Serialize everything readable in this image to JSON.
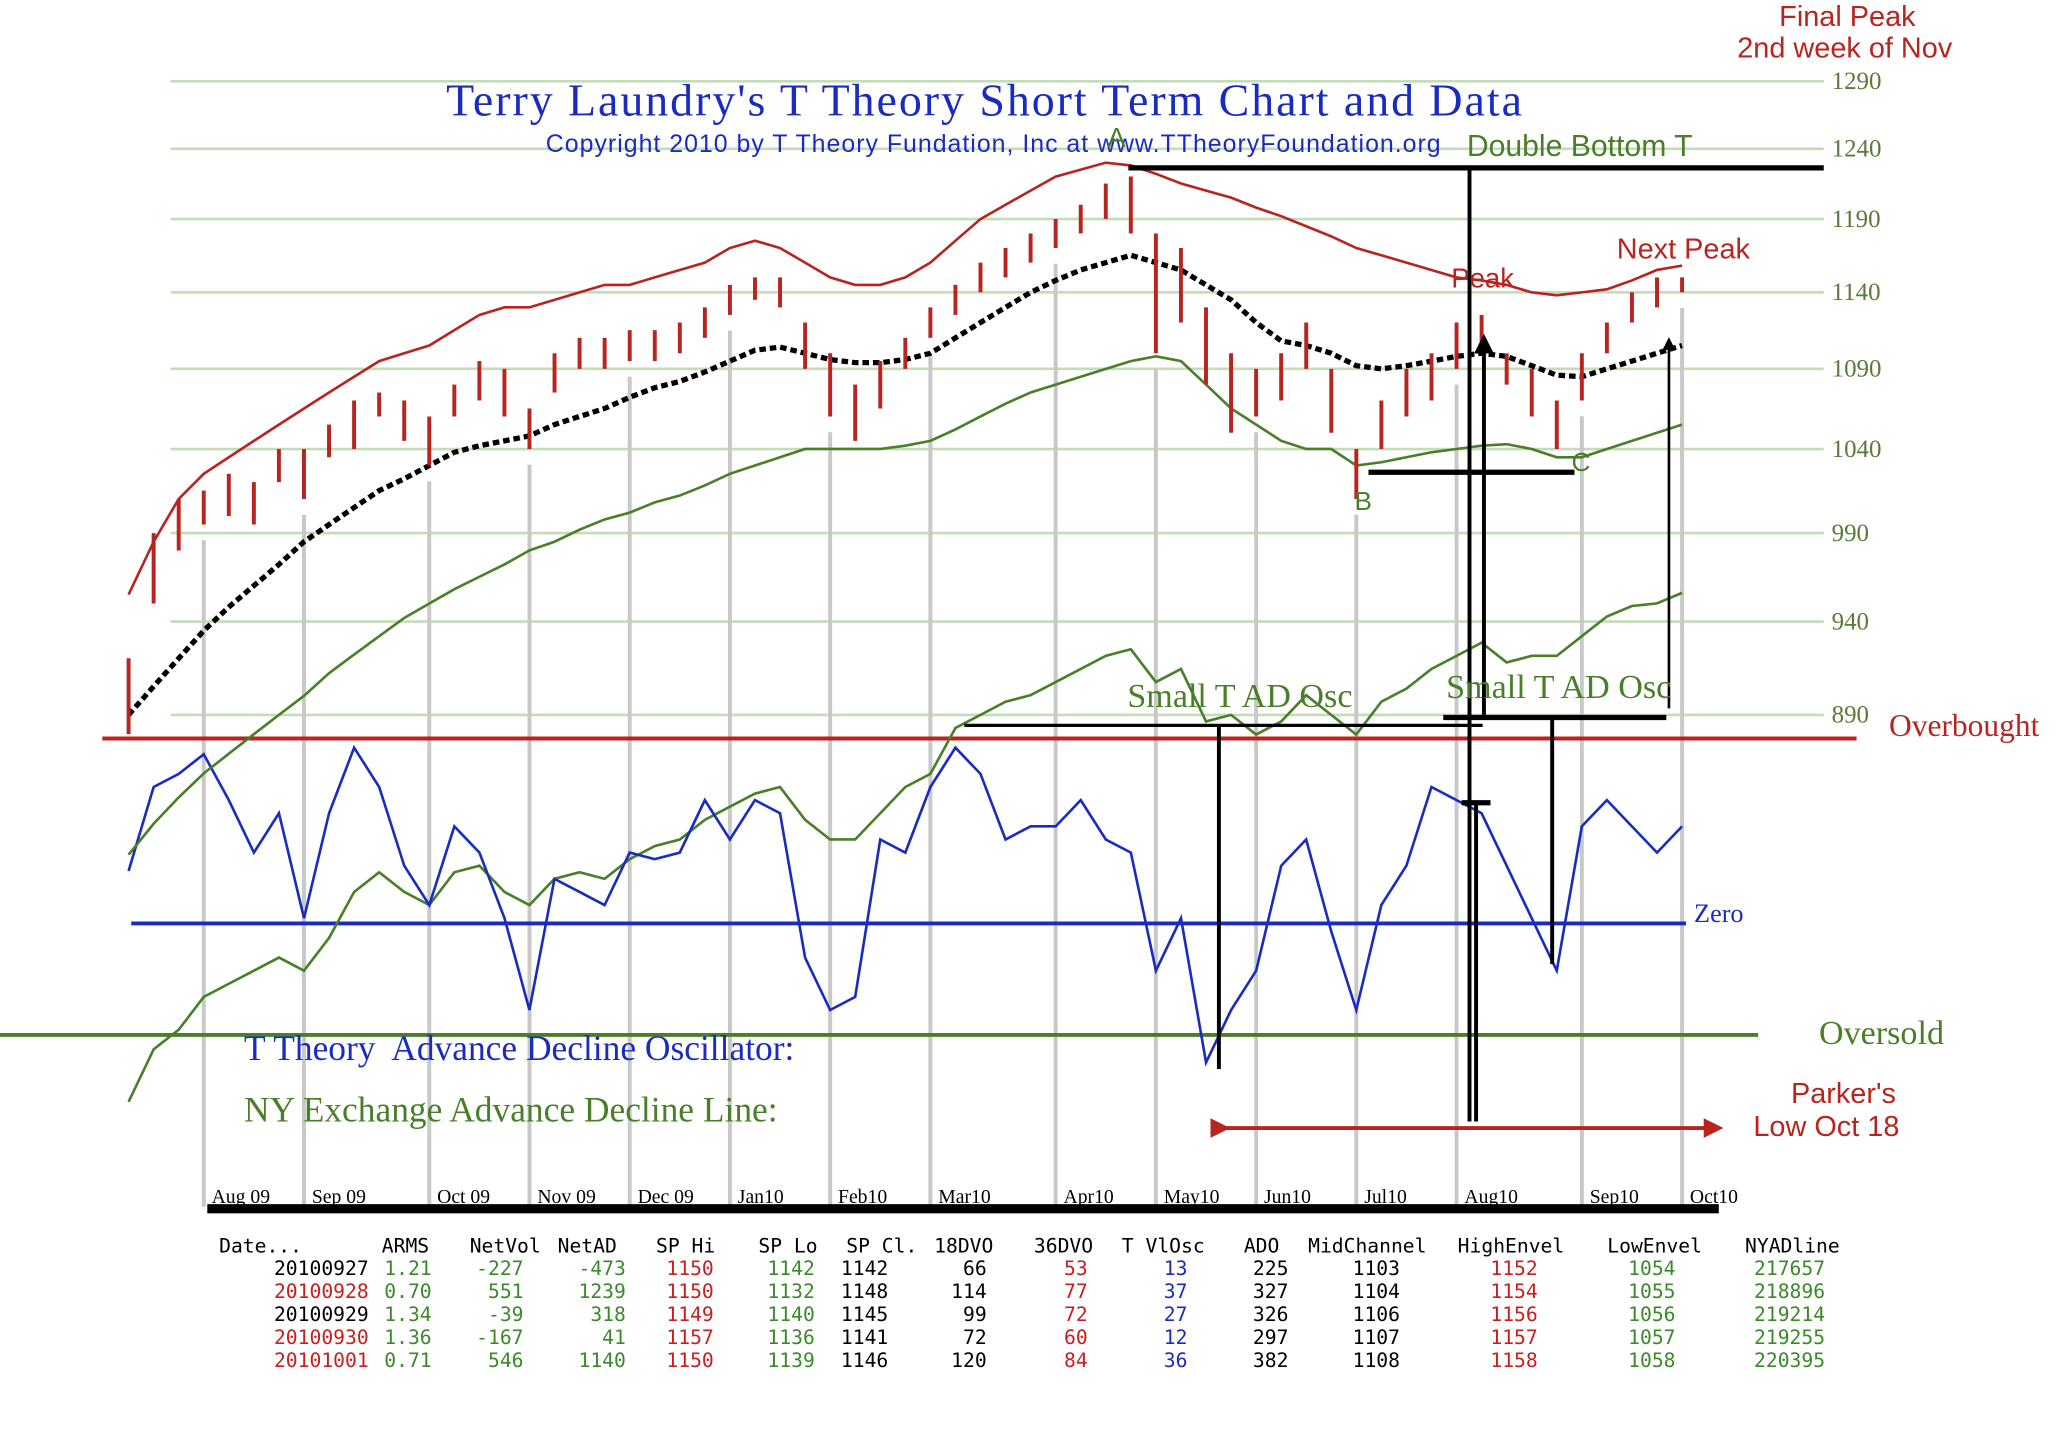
{
  "chart_data": {
    "type": "line",
    "title": "Terry Laundry's T Theory Short Term Chart and Data",
    "subtitle": "Copyright 2010 by T Theory Fundation, Inc at www.TTheoryFoundation.org",
    "categories": [
      null,
      null,
      null,
      "Aug 09",
      null,
      null,
      null,
      "Sep 09",
      null,
      null,
      null,
      null,
      "Oct 09",
      null,
      null,
      null,
      "Nov 09",
      null,
      null,
      null,
      "Dec 09",
      null,
      null,
      null,
      "Jan10",
      null,
      null,
      null,
      "Feb10",
      null,
      null,
      null,
      "Mar10",
      null,
      null,
      null,
      null,
      "Apr10",
      null,
      null,
      null,
      "May10",
      null,
      null,
      null,
      "Jun10",
      null,
      null,
      null,
      "Jul10",
      null,
      null,
      null,
      "Aug10",
      null,
      null,
      null,
      null,
      "Sep10",
      null,
      null,
      null,
      "Oct10"
    ],
    "price": {
      "log": true,
      "ylim": [
        890,
        1290
      ],
      "yticks": [
        890,
        940,
        990,
        1040,
        1090,
        1140,
        1190,
        1240,
        1290
      ],
      "grid": true,
      "color": "#b8241f",
      "high": [
        920,
        990,
        1010,
        1015,
        1025,
        1020,
        1040,
        1040,
        1055,
        1070,
        1075,
        1070,
        1060,
        1080,
        1095,
        1090,
        1065,
        1100,
        1110,
        1110,
        1115,
        1115,
        1120,
        1130,
        1145,
        1150,
        1150,
        1120,
        1100,
        1080,
        1095,
        1110,
        1130,
        1145,
        1160,
        1170,
        1180,
        1190,
        1200,
        1215,
        1220,
        1180,
        1170,
        1130,
        1100,
        1090,
        1100,
        1120,
        1090,
        1040,
        1070,
        1090,
        1100,
        1120,
        1125,
        1100,
        1090,
        1070,
        1100,
        1120,
        1140,
        1150,
        1150
      ],
      "low": [
        880,
        950,
        980,
        995,
        1000,
        995,
        1020,
        1010,
        1035,
        1040,
        1060,
        1045,
        1030,
        1060,
        1070,
        1060,
        1040,
        1075,
        1090,
        1090,
        1095,
        1095,
        1100,
        1110,
        1125,
        1135,
        1130,
        1090,
        1060,
        1045,
        1065,
        1090,
        1110,
        1125,
        1140,
        1150,
        1160,
        1170,
        1180,
        1190,
        1180,
        1100,
        1120,
        1080,
        1050,
        1060,
        1070,
        1090,
        1050,
        1010,
        1040,
        1060,
        1070,
        1090,
        1100,
        1080,
        1060,
        1040,
        1070,
        1100,
        1120,
        1130,
        1140
      ]
    },
    "envelopes": [
      {
        "color": "#b8241f",
        "dashed": false,
        "values": [
          955,
          985,
          1010,
          1025,
          1035,
          1045,
          1055,
          1065,
          1075,
          1085,
          1095,
          1100,
          1105,
          1115,
          1125,
          1130,
          1130,
          1135,
          1140,
          1145,
          1145,
          1150,
          1155,
          1160,
          1170,
          1175,
          1170,
          1160,
          1150,
          1145,
          1145,
          1150,
          1160,
          1175,
          1190,
          1200,
          1210,
          1220,
          1225,
          1230,
          1228,
          1222,
          1215,
          1210,
          1205,
          1198,
          1192,
          1185,
          1178,
          1170,
          1165,
          1160,
          1155,
          1150,
          1148,
          1145,
          1140,
          1138,
          1140,
          1142,
          1148,
          1155,
          1158
        ]
      },
      {
        "color": "#000000",
        "dashed": true,
        "values": [
          890,
          905,
          920,
          935,
          948,
          960,
          972,
          985,
          995,
          1005,
          1015,
          1022,
          1030,
          1038,
          1042,
          1045,
          1048,
          1055,
          1060,
          1065,
          1072,
          1078,
          1082,
          1088,
          1095,
          1102,
          1104,
          1100,
          1096,
          1094,
          1094,
          1096,
          1100,
          1110,
          1120,
          1130,
          1140,
          1148,
          1155,
          1160,
          1165,
          1160,
          1155,
          1145,
          1135,
          1120,
          1108,
          1105,
          1100,
          1092,
          1090,
          1092,
          1095,
          1098,
          1100,
          1098,
          1092,
          1086,
          1085,
          1090,
          1095,
          1100,
          1105
        ]
      },
      {
        "color": "#4a7f2a",
        "dashed": false,
        "values": [
          820,
          835,
          848,
          860,
          870,
          880,
          890,
          900,
          912,
          922,
          932,
          942,
          950,
          958,
          965,
          972,
          980,
          985,
          992,
          998,
          1002,
          1008,
          1012,
          1018,
          1025,
          1030,
          1035,
          1040,
          1040,
          1040,
          1040,
          1042,
          1045,
          1052,
          1060,
          1068,
          1075,
          1080,
          1085,
          1090,
          1095,
          1098,
          1095,
          1080,
          1065,
          1055,
          1045,
          1040,
          1040,
          1030,
          1032,
          1035,
          1038,
          1040,
          1042,
          1043,
          1040,
          1035,
          1035,
          1040,
          1045,
          1050,
          1055
        ]
      }
    ],
    "oscillator": {
      "name": "T Theory  Advance Decline Oscillator:",
      "color": "#1a2cc0",
      "ylim": [
        -200,
        200
      ],
      "values": [
        40,
        104,
        114,
        129,
        94,
        54,
        84,
        4,
        84,
        134,
        104,
        44,
        14,
        74,
        54,
        4,
        -66,
        34,
        24,
        14,
        54,
        49,
        54,
        94,
        64,
        94,
        84,
        -26,
        -66,
        -56,
        64,
        54,
        104,
        134,
        114,
        64,
        74,
        74,
        94,
        64,
        54,
        -36,
        4,
        -106,
        -66,
        -36,
        44,
        64,
        -6,
        -66,
        14,
        44,
        104,
        94,
        84,
        44,
        4,
        -36,
        74,
        94,
        74,
        54,
        74
      ]
    },
    "ad_line": {
      "name": "NY Exchange Advance Decline Line:",
      "color": "#4a7f2a",
      "values": [
        -136,
        -96,
        -81,
        -56,
        -46,
        -36,
        -26,
        -36,
        -11,
        24,
        39,
        24,
        14,
        39,
        44,
        24,
        14,
        34,
        39,
        34,
        49,
        59,
        64,
        79,
        89,
        99,
        104,
        79,
        64,
        64,
        84,
        104,
        114,
        149,
        159,
        169,
        174,
        184,
        194,
        204,
        209,
        184,
        194,
        154,
        159,
        144,
        154,
        174,
        159,
        144,
        169,
        179,
        194,
        204,
        214,
        199,
        204,
        204,
        219,
        234,
        242,
        244,
        252
      ]
    },
    "reference_lines": [
      {
        "label": "Overbought",
        "value": 141,
        "color": "#b8241f"
      },
      {
        "label": "Zero",
        "value": 0,
        "color": "#1a2cc0"
      },
      {
        "label": "Oversold",
        "value": -85,
        "color": "#4a7f2a"
      }
    ],
    "annotations": [
      "Final Peak",
      "2nd week of Nov",
      "A",
      "Double Bottom T",
      "Next Peak",
      "Peak",
      "B",
      "C",
      "Small T AD Osc",
      "Small T AD Osc",
      "Parker's",
      "Low Oct 18"
    ]
  },
  "table": {
    "columns": [
      "Date...",
      "ARMS",
      "NetVol",
      "NetAD",
      "SP Hi",
      "SP Lo",
      "SP Cl.",
      "18DVO",
      "36DVO",
      "T VlOsc",
      "ADO",
      "MidChannel",
      "HighEnvel",
      "LowEnvel",
      "NYADline"
    ],
    "rows": [
      [
        "20100927",
        "1.21",
        "-227",
        "-473",
        "1150",
        "1142",
        "1142",
        "66",
        "53",
        "13",
        "225",
        "1103",
        "1152",
        "1054",
        "217657"
      ],
      [
        "20100928",
        "0.70",
        "551",
        "1239",
        "1150",
        "1132",
        "1148",
        "114",
        "77",
        "37",
        "327",
        "1104",
        "1154",
        "1055",
        "218896"
      ],
      [
        "20100929",
        "1.34",
        "-39",
        "318",
        "1149",
        "1140",
        "1145",
        "99",
        "72",
        "27",
        "326",
        "1106",
        "1156",
        "1056",
        "219214"
      ],
      [
        "20100930",
        "1.36",
        "-167",
        "41",
        "1157",
        "1136",
        "1141",
        "72",
        "60",
        "12",
        "297",
        "1107",
        "1157",
        "1057",
        "219255"
      ],
      [
        "20101001",
        "0.71",
        "546",
        "1140",
        "1150",
        "1139",
        "1146",
        "120",
        "84",
        "36",
        "382",
        "1108",
        "1158",
        "1058",
        "220395"
      ]
    ]
  }
}
